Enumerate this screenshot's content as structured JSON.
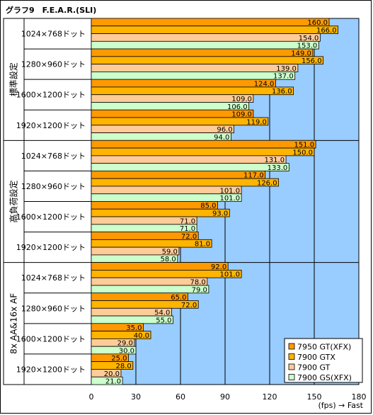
{
  "chart_data": {
    "type": "bar",
    "orientation": "horizontal",
    "title": "グラフ9　F.E.A.R.(SLI)",
    "xlabel": "(fps) → Fast",
    "xlim": [
      0,
      180
    ],
    "xticks": [
      0,
      30,
      60,
      90,
      120,
      150,
      180
    ],
    "grid": true,
    "legend_position": "bottom-right",
    "groups": [
      {
        "name": "標準設定",
        "categories": [
          "1024×768ドット",
          "1280×960ドット",
          "1600×1200ドット",
          "1920×1200ドット"
        ],
        "series_values": [
          [
            160.0,
            149.0,
            124.0,
            109.0
          ],
          [
            166.0,
            156.0,
            136.0,
            119.0
          ],
          [
            154.0,
            139.0,
            109.0,
            96.0
          ],
          [
            153.0,
            137.0,
            106.0,
            94.0
          ]
        ]
      },
      {
        "name": "高負荷設定",
        "categories": [
          "1024×768ドット",
          "1280×960ドット",
          "1600×1200ドット",
          "1920×1200ドット"
        ],
        "series_values": [
          [
            151.0,
            117.0,
            85.0,
            72.0
          ],
          [
            150.0,
            126.0,
            93.0,
            81.0
          ],
          [
            131.0,
            101.0,
            71.0,
            59.0
          ],
          [
            133.0,
            101.0,
            71.0,
            58.0
          ]
        ]
      },
      {
        "name": "8x AA&16x AF",
        "categories": [
          "1024×768ドット",
          "1280×960ドット",
          "1600×1200ドット",
          "1920×1200ドット"
        ],
        "series_values": [
          [
            92.0,
            65.0,
            35.0,
            25.0
          ],
          [
            101.0,
            72.0,
            40.0,
            28.0
          ],
          [
            78.0,
            54.0,
            29.0,
            20.0
          ],
          [
            79.0,
            55.0,
            30.0,
            21.0
          ]
        ]
      }
    ],
    "series": [
      {
        "name": "7950 GT(XFX)",
        "color": "#ff9900"
      },
      {
        "name": "7900 GTX",
        "color": "#ffb400"
      },
      {
        "name": "7900 GT",
        "color": "#ffcc99"
      },
      {
        "name": "7900 GS(XFX)",
        "color": "#ccffcc"
      }
    ],
    "plot_background": "#99ccff"
  }
}
